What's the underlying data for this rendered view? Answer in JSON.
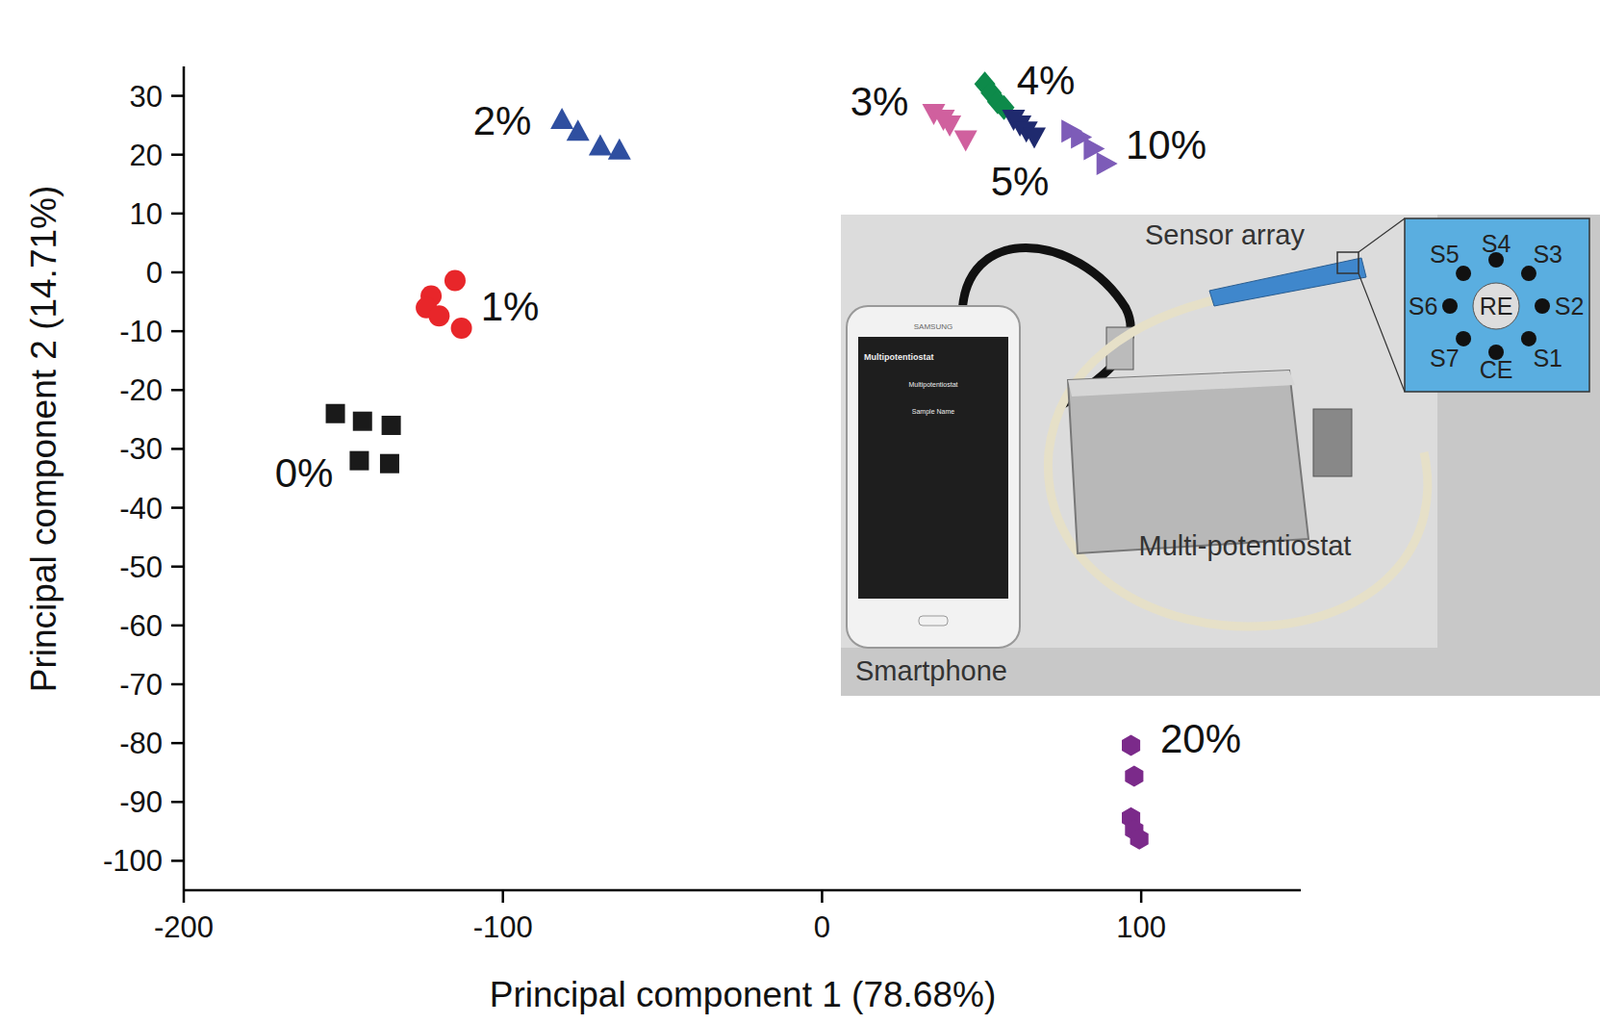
{
  "chart_data": {
    "type": "scatter",
    "x_label": "Principal component 1 (78.68%)",
    "y_label": "Principal component 2 (14.71%)",
    "xlim": [
      -200,
      150
    ],
    "ylim": [
      -105,
      35
    ],
    "xticks": [
      -200,
      -100,
      0,
      100
    ],
    "yticks": [
      -100,
      -90,
      -80,
      -70,
      -60,
      -50,
      -40,
      -30,
      -20,
      -10,
      0,
      10,
      20,
      30
    ],
    "grid": false,
    "series": [
      {
        "name": "0%",
        "color": "#1a1a1a",
        "marker": "square",
        "x": [
          -152.5,
          -144,
          -135,
          -145,
          -135.5
        ],
        "values": [
          -24,
          -25.3,
          -26,
          -32,
          -32.5
        ]
      },
      {
        "name": "1%",
        "color": "#e8262a",
        "marker": "circle",
        "x": [
          -115,
          -122.5,
          -124,
          -120,
          -113
        ],
        "values": [
          -1.4,
          -4,
          -6,
          -7.4,
          -9.5
        ]
      },
      {
        "name": "2%",
        "color": "#2f4fa0",
        "marker": "triangle-up",
        "x": [
          -81.5,
          -76.5,
          -69.5,
          -63.5
        ],
        "values": [
          26,
          24,
          21.5,
          20.8
        ]
      },
      {
        "name": "3%",
        "color": "#d0609e",
        "marker": "triangle-down",
        "x": [
          35,
          38,
          40,
          45
        ],
        "values": [
          27,
          26,
          25,
          22.5
        ]
      },
      {
        "name": "4%",
        "color": "#0d8a4a",
        "marker": "diamond",
        "x": [
          51,
          53,
          55,
          57
        ],
        "values": [
          32,
          30.5,
          29,
          28
        ]
      },
      {
        "name": "5%",
        "color": "#1f2a6e",
        "marker": "triangle-down",
        "x": [
          60,
          62,
          64,
          66.5
        ],
        "values": [
          26,
          25,
          24,
          23
        ]
      },
      {
        "name": "10%",
        "color": "#7d5cb8",
        "marker": "triangle-right",
        "x": [
          78,
          81,
          85,
          89
        ],
        "values": [
          24,
          23,
          21,
          18.5
        ]
      },
      {
        "name": "20%",
        "color": "#7b2a8a",
        "marker": "hexagon",
        "x": [
          96.8,
          97.8,
          96.8,
          97.8,
          99.4
        ],
        "values": [
          -80.4,
          -85.6,
          -92.7,
          -94.8,
          -96.3
        ]
      }
    ]
  },
  "inset": {
    "sensor_label": "Sensor array",
    "device_label": "Multi-potentiostat",
    "phone_label": "Smartphone",
    "phone_brand": "SAMSUNG",
    "phone_screen": [
      "Multipotentiostat",
      "Multipotentiostat",
      "Sample Name"
    ],
    "electrodes": [
      "S1",
      "S2",
      "S3",
      "S4",
      "S5",
      "S6",
      "S7"
    ],
    "reference": "RE",
    "counter": "CE"
  }
}
